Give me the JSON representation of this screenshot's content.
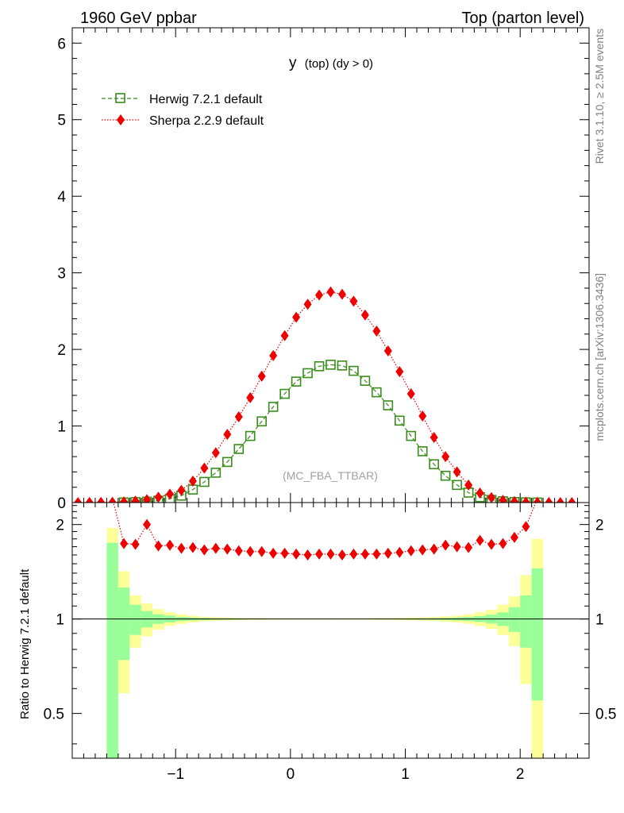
{
  "header": {
    "left": "1960 GeV ppbar",
    "right": "Top (parton level)"
  },
  "side_labels": {
    "rivet": "Rivet 3.1.10, ≥ 2.5M events",
    "mcplots": "mcplots.cern.ch [arXiv:1306.3436]"
  },
  "chart_data": {
    "type": "line",
    "title": "y",
    "title_suffix": "(top) (dy > 0)",
    "watermark": "(MC_FBA_TTBAR)",
    "legend_position": "top-left",
    "colors": {
      "herwig": "#3a8c1c",
      "sherpa": "#ee0000",
      "band_inner": "#99ff99",
      "band_outer": "#ffff99"
    },
    "main": {
      "ylim": [
        0,
        6.2
      ],
      "yticks": [
        0,
        1,
        2,
        3,
        4,
        5,
        6
      ],
      "xlim": [
        -1.9,
        2.6
      ]
    },
    "ratio": {
      "ylabel": "Ratio to Herwig 7.2.1 default",
      "ylim": [
        0.36,
        2.35
      ],
      "yticks": [
        0.5,
        1,
        2
      ],
      "ytick_labels": [
        "0.5",
        "1",
        "2"
      ]
    },
    "xticks": [
      -1,
      0,
      1,
      2
    ],
    "xtick_labels": [
      "−1",
      "0",
      "1",
      "2"
    ],
    "bin_edges": [
      -1.9,
      -1.8,
      -1.7,
      -1.6,
      -1.5,
      -1.4,
      -1.3,
      -1.2,
      -1.1,
      -1.0,
      -0.9,
      -0.8,
      -0.7,
      -0.6,
      -0.5,
      -0.4,
      -0.3,
      -0.2,
      -0.1,
      0.0,
      0.1,
      0.2,
      0.3,
      0.4,
      0.5,
      0.6,
      0.7,
      0.8,
      0.9,
      1.0,
      1.1,
      1.2,
      1.3,
      1.4,
      1.5,
      1.6,
      1.7,
      1.8,
      1.9,
      2.0,
      2.1,
      2.2,
      2.3,
      2.4,
      2.5,
      2.6
    ],
    "series": [
      {
        "name": "Herwig 7.2.1 default",
        "marker": "open-square",
        "x": [
          -1.45,
          -1.35,
          -1.25,
          -1.15,
          -1.05,
          -0.95,
          -0.85,
          -0.75,
          -0.65,
          -0.55,
          -0.45,
          -0.35,
          -0.25,
          -0.15,
          -0.05,
          0.05,
          0.15,
          0.25,
          0.35,
          0.45,
          0.55,
          0.65,
          0.75,
          0.85,
          0.95,
          1.05,
          1.15,
          1.25,
          1.35,
          1.45,
          1.55,
          1.65,
          1.75,
          1.85,
          1.95,
          2.05,
          2.15
        ],
        "y": [
          0.002,
          0.006,
          0.012,
          0.025,
          0.05,
          0.09,
          0.17,
          0.27,
          0.39,
          0.53,
          0.7,
          0.87,
          1.06,
          1.25,
          1.42,
          1.58,
          1.69,
          1.78,
          1.8,
          1.79,
          1.72,
          1.59,
          1.44,
          1.27,
          1.07,
          0.87,
          0.67,
          0.5,
          0.35,
          0.23,
          0.13,
          0.07,
          0.035,
          0.017,
          0.007,
          0.003,
          0.001
        ]
      },
      {
        "name": "Sherpa 2.2.9 default",
        "marker": "filled-diamond",
        "x": [
          -1.85,
          -1.75,
          -1.65,
          -1.55,
          -1.45,
          -1.35,
          -1.25,
          -1.15,
          -1.05,
          -0.95,
          -0.85,
          -0.75,
          -0.65,
          -0.55,
          -0.45,
          -0.35,
          -0.25,
          -0.15,
          -0.05,
          0.05,
          0.15,
          0.25,
          0.35,
          0.45,
          0.55,
          0.65,
          0.75,
          0.85,
          0.95,
          1.05,
          1.15,
          1.25,
          1.35,
          1.45,
          1.55,
          1.65,
          1.75,
          1.85,
          1.95,
          2.05,
          2.15,
          2.25,
          2.35,
          2.45
        ],
        "y": [
          0.0005,
          0.001,
          0.002,
          0.004,
          0.009,
          0.019,
          0.038,
          0.07,
          0.11,
          0.16,
          0.28,
          0.45,
          0.65,
          0.89,
          1.12,
          1.37,
          1.65,
          1.92,
          2.18,
          2.42,
          2.59,
          2.71,
          2.75,
          2.72,
          2.63,
          2.45,
          2.24,
          1.98,
          1.71,
          1.42,
          1.13,
          0.85,
          0.6,
          0.4,
          0.23,
          0.125,
          0.065,
          0.03,
          0.013,
          0.0055,
          0.002,
          0.001,
          0.0005,
          0.0003
        ]
      }
    ],
    "ratio_series": [
      {
        "name": "Sherpa 2.2.9 default",
        "x": [
          -1.45,
          -1.35,
          -1.25,
          -1.15,
          -1.05,
          -0.95,
          -0.85,
          -0.75,
          -0.65,
          -0.55,
          -0.45,
          -0.35,
          -0.25,
          -0.15,
          -0.05,
          0.05,
          0.15,
          0.25,
          0.35,
          0.45,
          0.55,
          0.65,
          0.75,
          0.85,
          0.95,
          1.05,
          1.15,
          1.25,
          1.35,
          1.45,
          1.55,
          1.65,
          1.75,
          1.85,
          1.95,
          2.05
        ],
        "y": [
          1.74,
          1.73,
          2.0,
          1.71,
          1.72,
          1.68,
          1.69,
          1.66,
          1.68,
          1.67,
          1.65,
          1.64,
          1.64,
          1.62,
          1.62,
          1.61,
          1.6,
          1.61,
          1.61,
          1.6,
          1.61,
          1.61,
          1.61,
          1.62,
          1.63,
          1.65,
          1.66,
          1.67,
          1.72,
          1.7,
          1.69,
          1.78,
          1.73,
          1.74,
          1.82,
          1.97
        ]
      }
    ],
    "ratio_band": {
      "x_left": [
        -1.6,
        -1.5,
        -1.4,
        -1.3,
        -1.2,
        -1.1,
        -1.0,
        -0.9,
        -0.8,
        -0.7,
        -0.6,
        -0.5,
        -0.4,
        -0.3,
        -0.2,
        -0.1,
        0.0,
        0.1,
        0.2,
        0.3,
        0.4,
        0.5,
        0.6,
        0.7,
        0.8,
        0.9,
        1.0,
        1.1,
        1.2,
        1.3,
        1.4,
        1.5,
        1.6,
        1.7,
        1.8,
        1.9,
        2.0,
        2.1
      ],
      "inner_err": [
        0.75,
        0.26,
        0.11,
        0.06,
        0.035,
        0.025,
        0.015,
        0.011,
        0.008,
        0.006,
        0.005,
        0.004,
        0.003,
        0.003,
        0.002,
        0.002,
        0.002,
        0.002,
        0.002,
        0.002,
        0.002,
        0.002,
        0.002,
        0.002,
        0.003,
        0.003,
        0.004,
        0.005,
        0.006,
        0.008,
        0.011,
        0.015,
        0.022,
        0.032,
        0.05,
        0.09,
        0.19,
        0.45
      ],
      "outer_err": [
        0.95,
        0.42,
        0.19,
        0.12,
        0.075,
        0.05,
        0.035,
        0.025,
        0.017,
        0.013,
        0.01,
        0.008,
        0.007,
        0.006,
        0.005,
        0.005,
        0.004,
        0.004,
        0.004,
        0.004,
        0.005,
        0.005,
        0.005,
        0.006,
        0.007,
        0.008,
        0.01,
        0.012,
        0.015,
        0.02,
        0.025,
        0.035,
        0.05,
        0.07,
        0.11,
        0.18,
        0.38,
        0.8
      ]
    }
  }
}
